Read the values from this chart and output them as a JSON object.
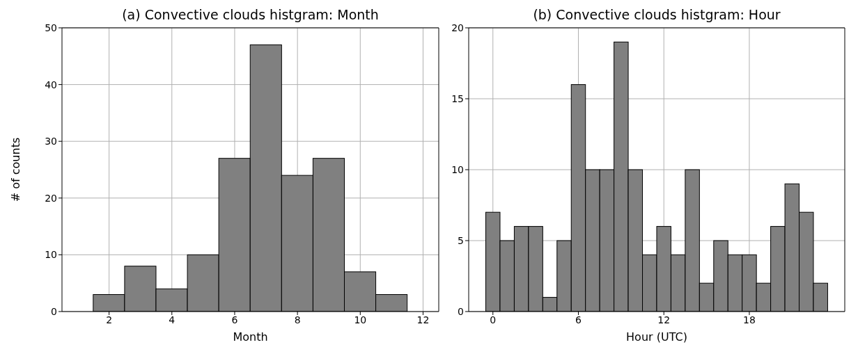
{
  "chart_data": [
    {
      "type": "histogram",
      "title": "(a) Convective clouds histgram: Month",
      "xlabel": "Month",
      "ylabel": "# of counts",
      "bins": [
        1.5,
        2.5,
        3.5,
        4.5,
        5.5,
        6.5,
        7.5,
        8.5,
        9.5,
        10.5,
        11.5
      ],
      "values": [
        3,
        8,
        4,
        10,
        27,
        47,
        24,
        27,
        7,
        3
      ],
      "color": "#808080",
      "xlim": [
        0.5,
        12.5
      ],
      "xticks": [
        2,
        4,
        6,
        8,
        10,
        12
      ],
      "ylim": [
        0,
        50
      ],
      "yticks": [
        0,
        10,
        20,
        30,
        40,
        50
      ],
      "grid": true
    },
    {
      "type": "histogram",
      "title": "(b) Convective clouds histgram: Hour",
      "xlabel": "Hour (UTC)",
      "bins": [
        -0.5,
        0.5,
        1.5,
        2.5,
        3.5,
        4.5,
        5.5,
        6.5,
        7.5,
        8.5,
        9.5,
        10.5,
        11.5,
        12.5,
        13.5,
        14.5,
        15.5,
        16.5,
        17.5,
        18.5,
        19.5,
        20.5,
        21.5,
        22.5,
        23.5
      ],
      "values": [
        7,
        5,
        6,
        6,
        1,
        5,
        16,
        10,
        10,
        19,
        10,
        4,
        6,
        4,
        10,
        2,
        5,
        4,
        4,
        2,
        6,
        9,
        7,
        2
      ],
      "color": "#808080",
      "xlim": [
        -1.7,
        24.7
      ],
      "xticks": [
        0,
        6,
        12,
        18
      ],
      "ylim": [
        0,
        20
      ],
      "yticks": [
        0,
        5,
        10,
        15,
        20
      ],
      "grid": true
    }
  ]
}
